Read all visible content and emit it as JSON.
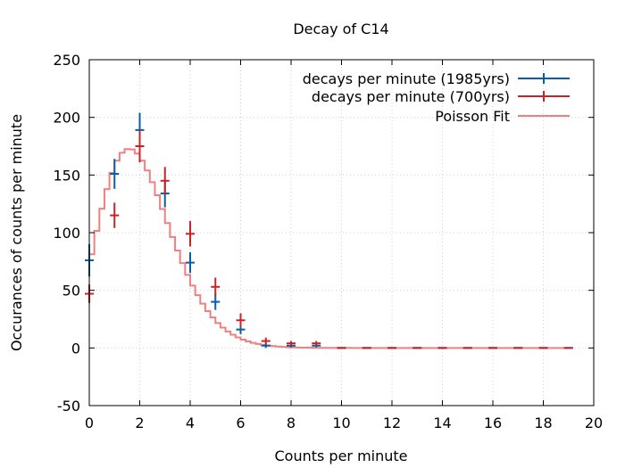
{
  "chart_data": {
    "type": "line",
    "title": "Decay of C14",
    "xlabel": "Counts per minute",
    "ylabel": "Occurances of counts per minute",
    "xlim": [
      0,
      20
    ],
    "ylim": [
      -50,
      250
    ],
    "xticks": [
      0,
      2,
      4,
      6,
      8,
      10,
      12,
      14,
      16,
      18,
      20
    ],
    "yticks": [
      -50,
      0,
      50,
      100,
      150,
      200,
      250
    ],
    "grid": true,
    "legend_position": "top-right",
    "series": [
      {
        "name": "decays per minute (1985yrs)",
        "kind": "errorbars",
        "color": "#0a5ea8",
        "points": [
          {
            "x": 0,
            "y": 76,
            "err": 14
          },
          {
            "x": 1,
            "y": 151,
            "err": 13
          },
          {
            "x": 2,
            "y": 189,
            "err": 15
          },
          {
            "x": 3,
            "y": 134,
            "err": 12
          },
          {
            "x": 4,
            "y": 74,
            "err": 9
          },
          {
            "x": 5,
            "y": 40,
            "err": 7
          },
          {
            "x": 6,
            "y": 16,
            "err": 4
          },
          {
            "x": 7,
            "y": 2,
            "err": 2
          },
          {
            "x": 8,
            "y": 2,
            "err": 1.5
          },
          {
            "x": 9,
            "y": 2,
            "err": 1.5
          },
          {
            "x": 10,
            "y": 0,
            "err": 0.5
          },
          {
            "x": 11,
            "y": 0,
            "err": 0.5
          },
          {
            "x": 12,
            "y": 0,
            "err": 0.5
          },
          {
            "x": 13,
            "y": 0,
            "err": 0.5
          },
          {
            "x": 14,
            "y": 0,
            "err": 0.5
          },
          {
            "x": 15,
            "y": 0,
            "err": 0.5
          },
          {
            "x": 16,
            "y": 0,
            "err": 0.5
          },
          {
            "x": 17,
            "y": 0,
            "err": 0.5
          },
          {
            "x": 18,
            "y": 0,
            "err": 0.5
          },
          {
            "x": 19,
            "y": 0,
            "err": 0.5
          }
        ]
      },
      {
        "name": "decays per minute (700yrs)",
        "kind": "errorbars",
        "color": "#cc2227",
        "points": [
          {
            "x": 0,
            "y": 47,
            "err": 8
          },
          {
            "x": 1,
            "y": 115,
            "err": 11
          },
          {
            "x": 2,
            "y": 175,
            "err": 14
          },
          {
            "x": 3,
            "y": 145,
            "err": 12
          },
          {
            "x": 4,
            "y": 99,
            "err": 11
          },
          {
            "x": 5,
            "y": 53,
            "err": 8
          },
          {
            "x": 6,
            "y": 24,
            "err": 6
          },
          {
            "x": 7,
            "y": 6,
            "err": 3
          },
          {
            "x": 8,
            "y": 4,
            "err": 2
          },
          {
            "x": 9,
            "y": 4,
            "err": 2
          },
          {
            "x": 10,
            "y": 0,
            "err": 0.5
          },
          {
            "x": 11,
            "y": 0,
            "err": 0.5
          },
          {
            "x": 12,
            "y": 0,
            "err": 0.5
          },
          {
            "x": 13,
            "y": 0,
            "err": 0.5
          },
          {
            "x": 14,
            "y": 0,
            "err": 0.5
          },
          {
            "x": 15,
            "y": 0,
            "err": 0.5
          },
          {
            "x": 16,
            "y": 0,
            "err": 0.5
          },
          {
            "x": 17,
            "y": 0,
            "err": 0.5
          },
          {
            "x": 18,
            "y": 0,
            "err": 0.5
          },
          {
            "x": 19,
            "y": 0,
            "err": 0.5
          }
        ]
      },
      {
        "name": "Poisson Fit",
        "kind": "steps",
        "color": "#f08080",
        "mean": 2.0,
        "scale": 600,
        "step": 0.2,
        "x_start": 0,
        "x_end": 19
      }
    ]
  }
}
